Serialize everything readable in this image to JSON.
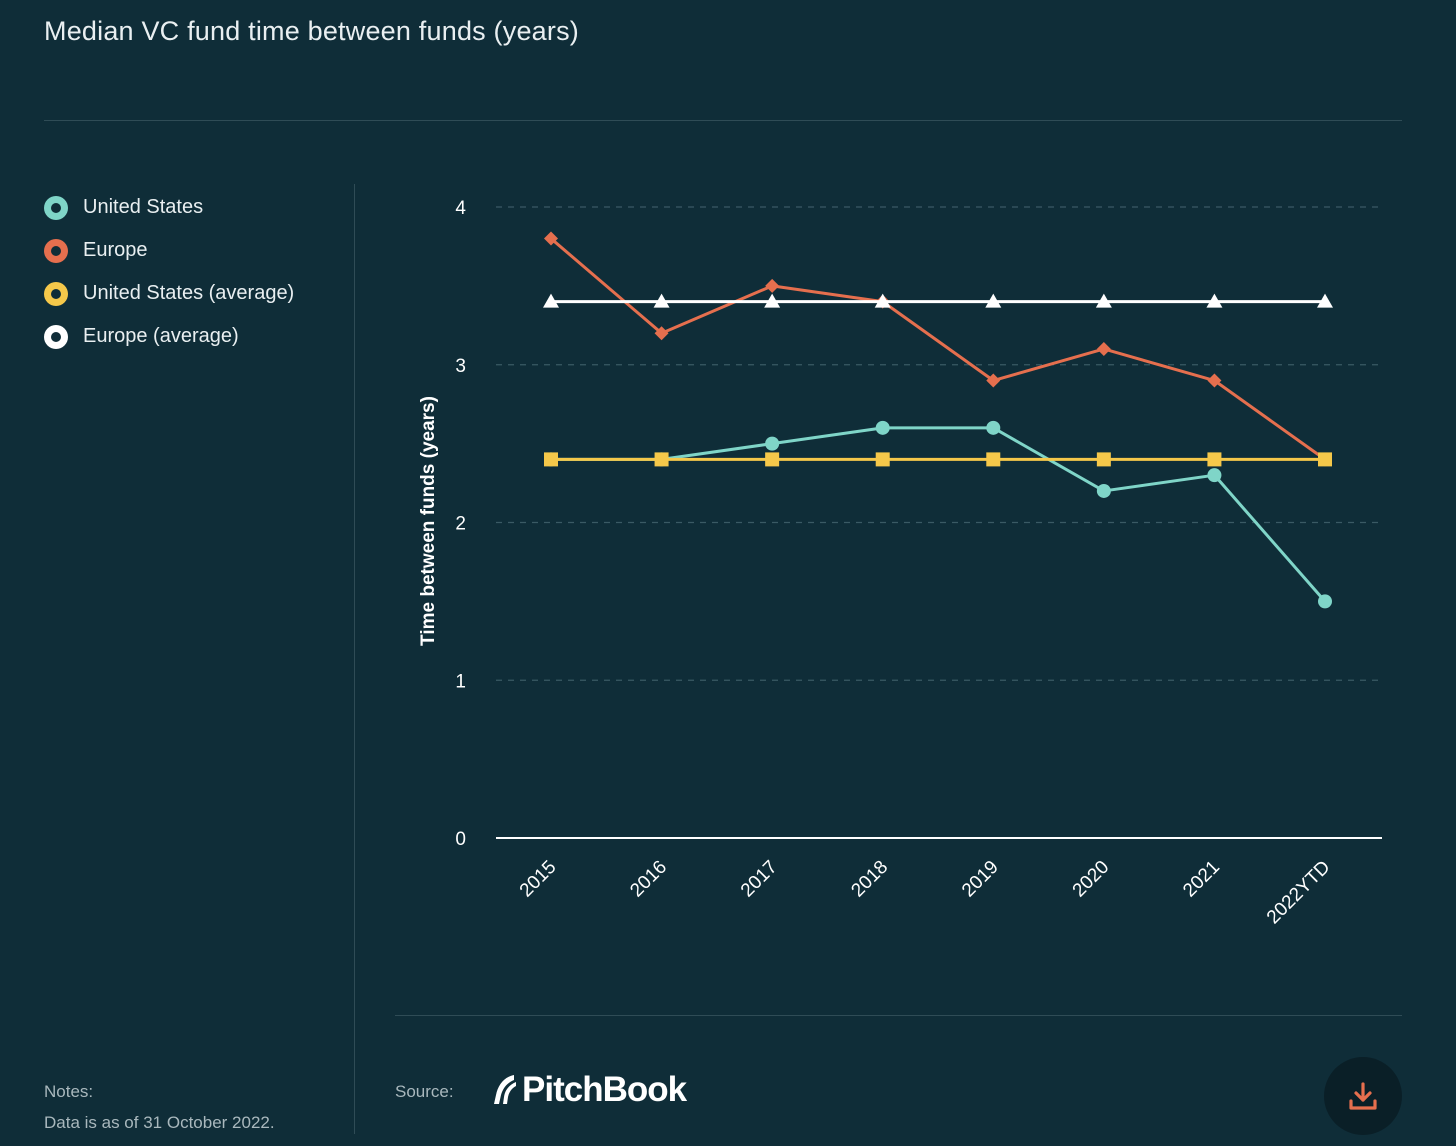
{
  "title": "Median VC fund time between funds (years)",
  "legend": [
    {
      "label": "United States",
      "color": "#7fd5c8"
    },
    {
      "label": "Europe",
      "color": "#e56f4e"
    },
    {
      "label": "United States (average)",
      "color": "#f5c84a"
    },
    {
      "label": "Europe (average)",
      "color": "#ffffff"
    }
  ],
  "notes": {
    "label": "Notes:",
    "text": "Data is as of 31 October 2022."
  },
  "source": {
    "label": "Source:",
    "brand": "PitchBook"
  },
  "download": {
    "icon": "download-icon"
  },
  "chart_data": {
    "type": "line",
    "title": "Median VC fund time between funds (years)",
    "ylabel": "Time between funds (years)",
    "xlabel": "",
    "ylim": [
      0,
      4
    ],
    "yticks": [
      0,
      1,
      2,
      3,
      4
    ],
    "grid": true,
    "legend_position": "left",
    "categories": [
      "2015",
      "2016",
      "2017",
      "2018",
      "2019",
      "2020",
      "2021",
      "2022YTD"
    ],
    "series": [
      {
        "name": "United States",
        "color": "#7fd5c8",
        "marker": "circle",
        "values": [
          2.4,
          2.4,
          2.5,
          2.6,
          2.6,
          2.2,
          2.3,
          1.5
        ]
      },
      {
        "name": "Europe",
        "color": "#e56f4e",
        "marker": "diamond",
        "values": [
          3.8,
          3.2,
          3.5,
          3.4,
          2.9,
          3.1,
          2.9,
          2.4
        ]
      },
      {
        "name": "United States (average)",
        "color": "#f5c84a",
        "marker": "square",
        "values": [
          2.4,
          2.4,
          2.4,
          2.4,
          2.4,
          2.4,
          2.4,
          2.4
        ]
      },
      {
        "name": "Europe (average)",
        "color": "#ffffff",
        "marker": "triangle",
        "values": [
          3.4,
          3.4,
          3.4,
          3.4,
          3.4,
          3.4,
          3.4,
          3.4
        ]
      }
    ]
  }
}
